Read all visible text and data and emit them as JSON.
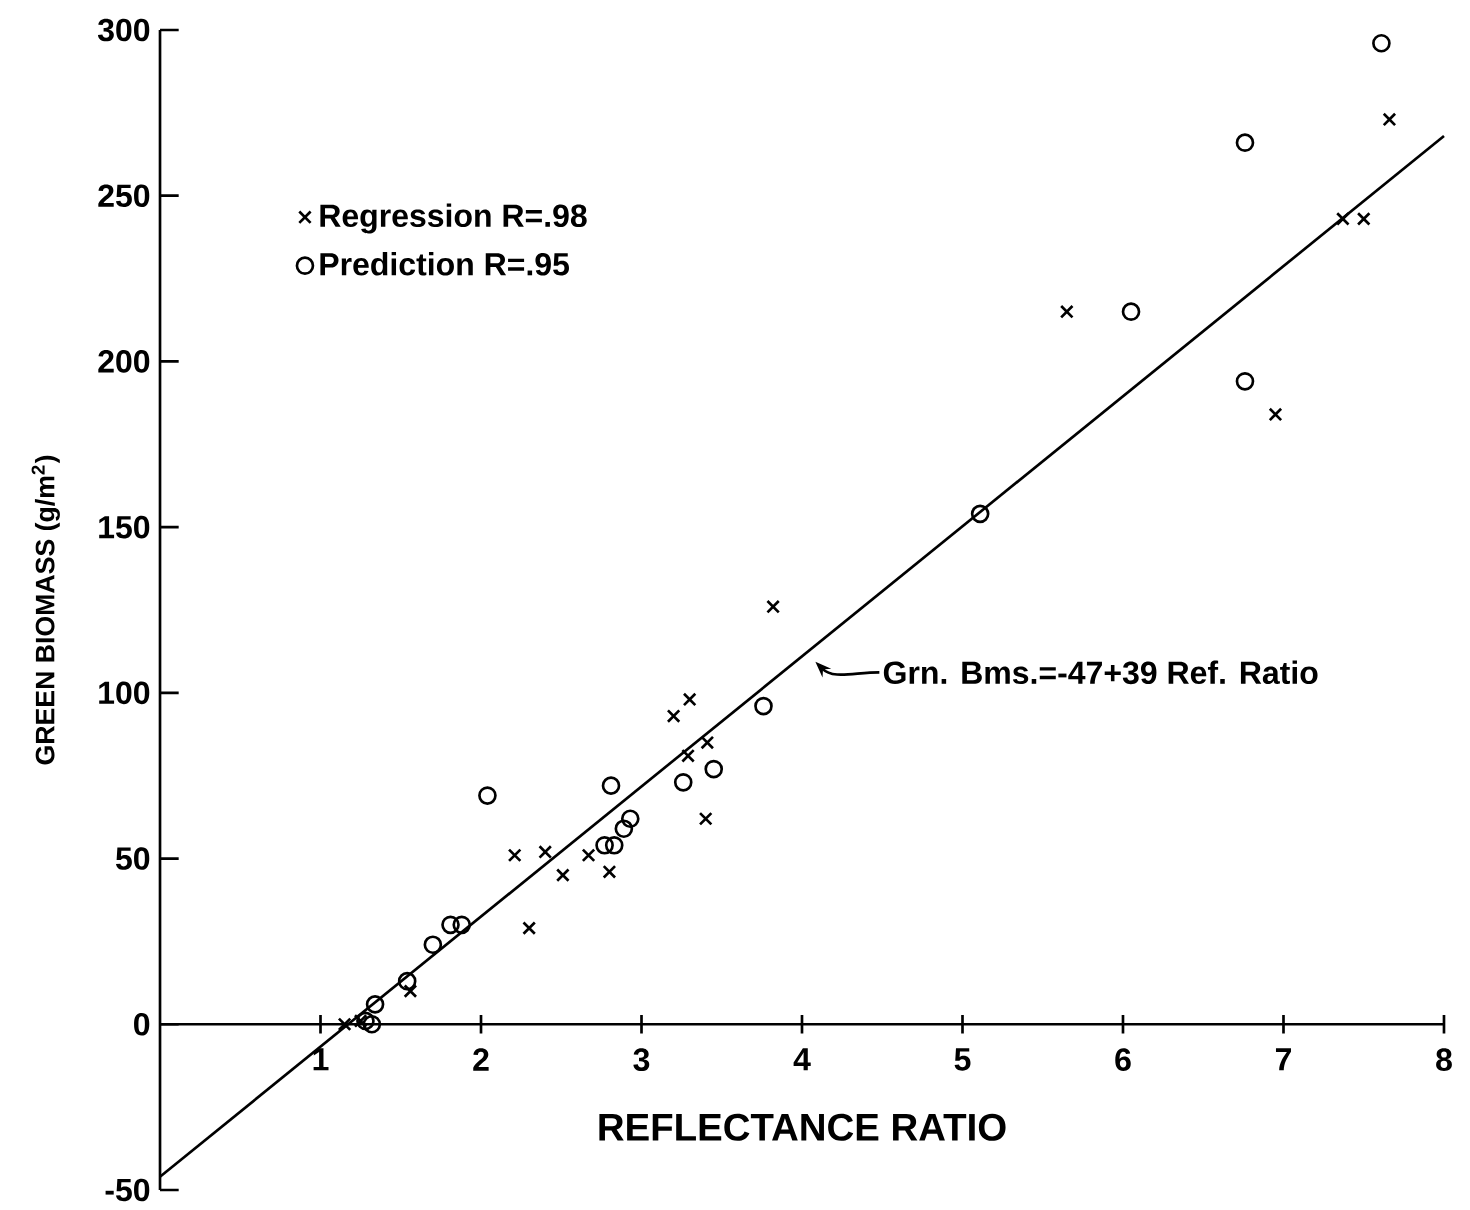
{
  "chart_data": {
    "type": "scatter",
    "xlabel": "REFLECTANCE RATIO",
    "ylabel": "GREEN BIOMASS (g/m$^{2}$)",
    "xlim": [
      0,
      8
    ],
    "ylim": [
      -50,
      300
    ],
    "xticks": [
      1,
      2,
      3,
      4,
      5,
      6,
      7,
      8
    ],
    "yticks": [
      -50,
      0,
      50,
      100,
      150,
      200,
      250,
      300
    ],
    "grid": false,
    "legend": "top left",
    "annotations": [
      {
        "text": "Grn. Bms.=-47+39 Ref. Ratio",
        "x": 4.05,
        "y": 111
      }
    ],
    "series": [
      {
        "name": "Regression  R=.98",
        "color": "#000000",
        "marker": "cross",
        "x": [
          1.15,
          1.25,
          1.56,
          2.21,
          2.3,
          2.4,
          2.51,
          2.67,
          2.8,
          3.2,
          3.3,
          3.29,
          3.41,
          3.4,
          3.82,
          5.65,
          6.95,
          7.37,
          7.5,
          7.66
        ],
        "values": [
          0,
          1,
          10,
          51,
          29,
          52,
          45,
          51,
          46,
          93,
          98,
          81,
          85,
          62,
          126,
          215,
          184,
          243,
          243,
          273
        ]
      },
      {
        "name": "Prediction  R=.95",
        "color": "#000000",
        "marker": "circle",
        "x": [
          1.28,
          1.32,
          1.34,
          1.54,
          1.7,
          1.81,
          1.88,
          2.04,
          2.77,
          2.81,
          2.83,
          2.89,
          2.93,
          3.26,
          3.45,
          3.76,
          5.11,
          6.05,
          6.76,
          6.76,
          7.61
        ],
        "values": [
          1,
          0,
          6,
          13,
          24,
          30,
          30,
          69,
          54,
          72,
          54,
          59,
          62,
          73,
          77,
          96,
          154,
          215,
          266,
          194,
          296
        ]
      },
      {
        "type": "line",
        "color": "#000000",
        "marker": "none",
        "line_style": "solid",
        "x": [
          0,
          8
        ],
        "values": [
          -46,
          268
        ]
      }
    ]
  }
}
